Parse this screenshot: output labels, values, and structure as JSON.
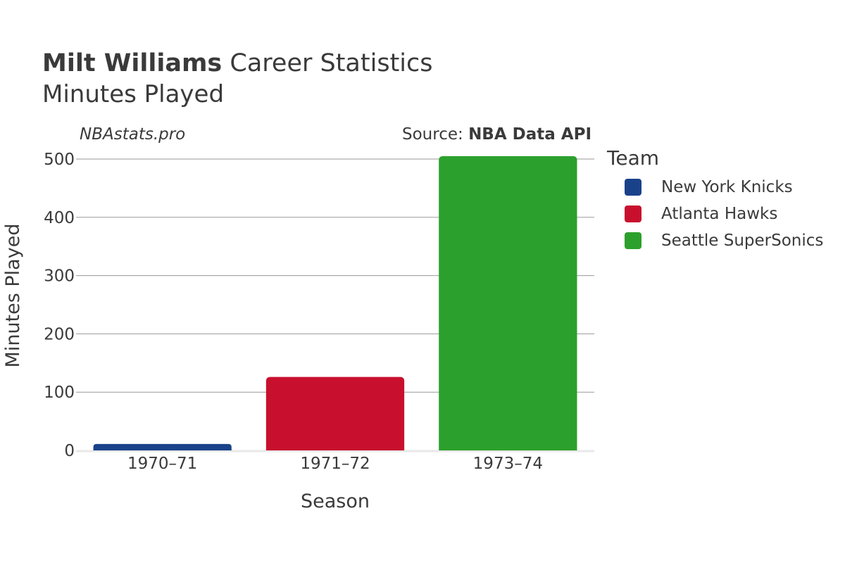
{
  "header": {
    "title_bold": "Milt Williams",
    "title_rest": "Career Statistics",
    "subtitle": "Minutes Played"
  },
  "credits": {
    "site": "NBAstats.pro",
    "source_prefix": "Source: ",
    "source_name": "NBA Data API"
  },
  "legend": {
    "title": "Team",
    "items": [
      {
        "label": "New York Knicks",
        "color": "#1a428a"
      },
      {
        "label": "Atlanta Hawks",
        "color": "#c8102e"
      },
      {
        "label": "Seattle SuperSonics",
        "color": "#2ca02c"
      }
    ]
  },
  "chart_data": {
    "type": "bar",
    "title": "Milt Williams Career Statistics",
    "subtitle": "Minutes Played",
    "xlabel": "Season",
    "ylabel": "Minutes Played",
    "categories": [
      "1970–71",
      "1971–72",
      "1973–74"
    ],
    "values": [
      11,
      126,
      505
    ],
    "teams": [
      "New York Knicks",
      "Atlanta Hawks",
      "Seattle SuperSonics"
    ],
    "colors": [
      "#1a428a",
      "#c8102e",
      "#2ca02c"
    ],
    "ylim": [
      0,
      510
    ],
    "yticks": [
      0,
      100,
      200,
      300,
      400,
      500
    ],
    "grid": true,
    "legend_position": "right"
  }
}
